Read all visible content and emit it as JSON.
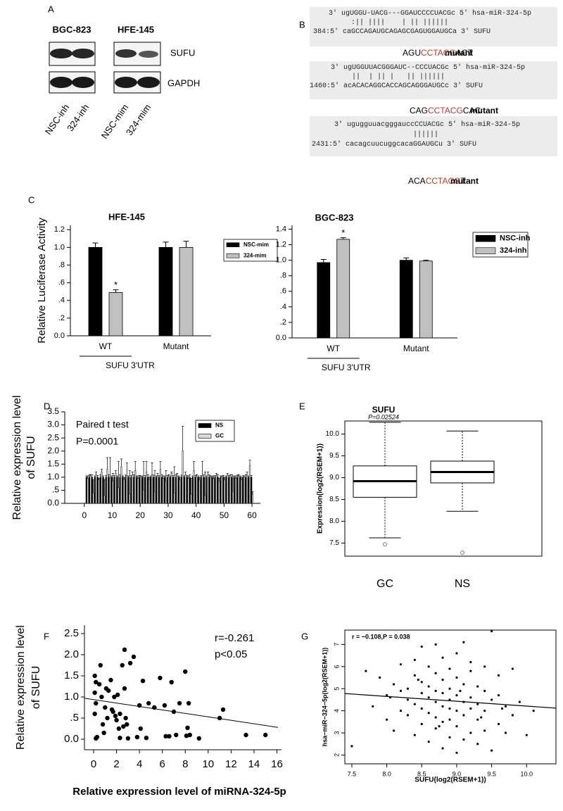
{
  "panel_labels": [
    "A",
    "B",
    "C",
    "D",
    "E",
    "F",
    "G"
  ],
  "blot": {
    "cell_lines": [
      "BGC-823",
      "HFE-145"
    ],
    "proteins": [
      "SUFU",
      "GAPDH"
    ],
    "lanes": [
      "NSC-inh",
      "324-inh",
      "NSC-mim",
      "324-mim"
    ]
  },
  "alignments": [
    {
      "mirna": "3' ugUGGU-UACG---GGAUCCCCUACGc 5' hsa-miR-324-5p",
      "pairing": ":|| ||||    | || ||||||",
      "target": "384:5' caGCCAGAUGCAGAGCGAGUGGAUGCa 3' SUFU",
      "mutant": [
        "AGU",
        "CCTACG",
        "ACT"
      ],
      "mutant_label": "mutant"
    },
    {
      "mirna": "3' ugUGGUUACGGGAUC--CCCUACGc 5' hsa-miR-324-5p",
      "pairing": "||  | || |   || ||||||",
      "target": "1460:5' acACACAGGCACCAGCAGGGAUGCc 3' SUFU",
      "mutant": [
        "CAG",
        "CCTACG",
        "CAC"
      ],
      "mutant_label": "mutant"
    },
    {
      "mirna": "3' ugugguuacgggauccCCUACGc 5' hsa-miR-324-5p",
      "pairing": "||||||",
      "target": "2431:5' cacagcuucuggcacaGGAUGCu 3' SUFU",
      "mutant": [
        "ACA",
        "CCTACG",
        "T"
      ],
      "mutant_label": "mutant"
    }
  ],
  "chart_data": [
    {
      "type": "bar",
      "title": "HFE-145",
      "ylabel": "Relative Luciferase Activity",
      "categories": [
        "WT",
        "Mutant"
      ],
      "group_label": "SUFU 3'UTR",
      "series": [
        {
          "name": "NSC-mim",
          "color": "#000000",
          "values": [
            1.0,
            1.0
          ],
          "errors": [
            0.05,
            0.06
          ]
        },
        {
          "name": "324-mim",
          "color": "#c0c0c0",
          "values": [
            0.49,
            1.0
          ],
          "errors": [
            0.03,
            0.07
          ],
          "significance": [
            "*",
            null
          ]
        }
      ],
      "ylim": [
        0,
        1.25
      ],
      "yticks": [
        {
          "value": 0,
          "label": "0.0"
        },
        {
          "value": 0.2,
          "label": ".2"
        },
        {
          "value": 0.4,
          "label": ".4"
        },
        {
          "value": 0.6,
          "label": ".6"
        },
        {
          "value": 0.8,
          "label": ".8"
        },
        {
          "value": 1,
          "label": "1.0"
        },
        1.2
      ],
      "legend": "right"
    },
    {
      "type": "bar",
      "title": "BGC-823",
      "categories": [
        "WT",
        "Mutant"
      ],
      "group_label": "SUFU 3'UTR",
      "series": [
        {
          "name": "NSC-inh",
          "color": "#000000",
          "values": [
            0.97,
            1.0
          ],
          "errors": [
            0.04,
            0.03
          ]
        },
        {
          "name": "324-inh",
          "color": "#c0c0c0",
          "values": [
            1.27,
            0.99
          ],
          "errors": [
            0.02,
            0.01
          ],
          "significance": [
            "*",
            null
          ]
        }
      ],
      "ylim": [
        0,
        1.45
      ],
      "yticks": [
        {
          "value": 0,
          "label": "0.0"
        },
        {
          "value": 0.2,
          "label": ".2"
        },
        {
          "value": 0.4,
          "label": ".4"
        },
        {
          "value": 0.6,
          "label": ".6"
        },
        {
          "value": 0.8,
          "label": ".8"
        },
        {
          "value": 1,
          "label": "1.0"
        },
        1.2,
        1.4
      ],
      "legend": "right"
    },
    {
      "type": "bar",
      "annotations": [
        "Paired t test",
        "P=0.0001"
      ],
      "ylabel": [
        "Relative expression level",
        "of SUFU"
      ],
      "x": [
        1,
        2,
        3,
        4,
        5,
        6,
        7,
        8,
        9,
        10,
        11,
        12,
        13,
        14,
        15,
        16,
        17,
        18,
        19,
        20,
        21,
        22,
        23,
        24,
        25,
        26,
        27,
        28,
        29,
        30,
        31,
        32,
        33,
        34,
        35,
        36,
        37,
        38,
        39,
        40,
        41,
        42,
        43,
        44,
        45,
        46,
        47,
        48,
        49,
        50,
        51,
        52,
        53,
        54,
        55,
        56,
        57,
        58,
        59,
        60
      ],
      "series": [
        {
          "name": "NS",
          "color": "#000000",
          "values": [
            1,
            1,
            1,
            1,
            1,
            1,
            1,
            1,
            1,
            1,
            1,
            1,
            1,
            1,
            1,
            1,
            1,
            1,
            1,
            1,
            1,
            1,
            1,
            1,
            1,
            1,
            1,
            1,
            1,
            1,
            1,
            1,
            1,
            1,
            1,
            1,
            1,
            1,
            1,
            1,
            1,
            1,
            1,
            1,
            1,
            1,
            1,
            1,
            1,
            1,
            1,
            1,
            1,
            1,
            1,
            1,
            1,
            1,
            1,
            1
          ],
          "errors": [
            0.05,
            0.08,
            0.1,
            0.05,
            0.06,
            0.1,
            0.05,
            0.07,
            0.1,
            0.05,
            0.06,
            0.05,
            0.1,
            0.05,
            0.08,
            0.05,
            0.06,
            0.1,
            0.05,
            0.07,
            0.05,
            0.06,
            0.1,
            0.05,
            0.08,
            0.05,
            0.06,
            0.1,
            0.05,
            0.07,
            0.05,
            0.06,
            0.1,
            0.05,
            0.08,
            0.05,
            0.06,
            0.1,
            0.05,
            0.07,
            0.05,
            0.06,
            0.1,
            0.05,
            0.08,
            0.05,
            0.06,
            0.1,
            0.05,
            0.07,
            0.05,
            0.06,
            0.1,
            0.05,
            0.08,
            0.05,
            0.06,
            0.1,
            0.05,
            0.07
          ]
        },
        {
          "name": "GC",
          "color": "#d9d9d9",
          "values": [
            0.95,
            1.05,
            0.4,
            1.1,
            0.9,
            1.2,
            0.3,
            1.3,
            1.0,
            0.85,
            1.15,
            0.6,
            1.4,
            0.9,
            1.05,
            0.35,
            1.1,
            1.25,
            0.95,
            1.0,
            0.5,
            1.2,
            0.9,
            1.1,
            0.45,
            1.05,
            1.3,
            0.95,
            0.85,
            1.0,
            1.15,
            0.4,
            1.05,
            0.9,
            2.0,
            1.1,
            0.95,
            0.35,
            1.25,
            1.0,
            0.9,
            1.05,
            0.3,
            1.1,
            1.0,
            0.95,
            1.05,
            0.85,
            1.0,
            0.9,
            1.1,
            1.0,
            0.45,
            0.95,
            1.05,
            0.9,
            1.0,
            1.1,
            1.45,
            0.35
          ],
          "errors": [
            0.1,
            0.05,
            0.5,
            0.1,
            0.05,
            0.1,
            0.6,
            0.45,
            0.75,
            0.3,
            0.1,
            1.0,
            0.3,
            0.1,
            0.5,
            0.9,
            0.1,
            0.35,
            0.1,
            0.05,
            1.1,
            0.4,
            0.1,
            0.45,
            0.8,
            0.1,
            0.3,
            0.1,
            0.4,
            0.1,
            0.05,
            1.0,
            0.1,
            0.1,
            0.95,
            0.1,
            0.1,
            0.6,
            0.35,
            0.1,
            0.1,
            0.55,
            0.9,
            0.1,
            0.05,
            0.1,
            0.1,
            0.1,
            0.05,
            0.1,
            0.05,
            0.1,
            0.6,
            0.1,
            0.05,
            0.1,
            0.05,
            0.1,
            0.2,
            0.1
          ]
        }
      ],
      "xlim": [
        -7,
        63
      ],
      "xticks": [
        0,
        10,
        20,
        30,
        40,
        50,
        60
      ],
      "ylim": [
        0,
        3.5
      ],
      "yticks": [
        {
          "value": 0,
          "label": "0.0"
        },
        {
          "value": 0.5,
          "label": ".5"
        },
        {
          "value": 1,
          "label": "1.0"
        },
        1.5,
        {
          "value": 2,
          "label": "2.0"
        },
        2.5,
        {
          "value": 3,
          "label": "3.0"
        },
        3.5
      ],
      "legend": "upper right"
    },
    {
      "type": "box",
      "title": "SUFU",
      "subtitle": "P=0.02524",
      "ylabel": "Expression(log2(RSEM+1))",
      "categories": [
        "GC",
        "NS"
      ],
      "frame": true,
      "boxes": [
        {
          "min": 7.62,
          "q1": 8.55,
          "median": 8.92,
          "q3": 9.27,
          "max": 10.27,
          "outliers": [
            7.47
          ]
        },
        {
          "min": 8.23,
          "q1": 8.88,
          "median": 9.13,
          "q3": 9.38,
          "max": 10.07,
          "outliers": [
            7.28
          ]
        }
      ],
      "ylim": [
        7.2,
        10.3
      ],
      "yticks": [
        7.5,
        {
          "value": 8,
          "label": "8.0"
        },
        8.5,
        {
          "value": 9,
          "label": "9.0"
        },
        9.5,
        {
          "value": 10,
          "label": "10.0"
        }
      ]
    },
    {
      "type": "scatter",
      "color": "#000000",
      "annotations": [
        "r=-0.261",
        "p<0.05"
      ],
      "xlabel": "Relative expression level of miRNA-324-5p",
      "ylabel": [
        "Relative expression level",
        "of SUFU"
      ],
      "x": [
        0.1,
        0.2,
        0.1,
        0.2,
        0.1,
        0.2,
        0.3,
        0.5,
        0.6,
        0.7,
        0.8,
        0.9,
        1.0,
        1.1,
        1.2,
        1.3,
        1.5,
        1.6,
        1.7,
        1.8,
        1.9,
        2.0,
        2.1,
        2.2,
        2.3,
        2.3,
        2.5,
        2.6,
        2.7,
        2.7,
        2.8,
        2.9,
        3.0,
        3.2,
        3.5,
        3.8,
        4.0,
        4.1,
        4.3,
        4.6,
        4.8,
        5.3,
        5.8,
        6.2,
        6.3,
        6.6,
        6.8,
        7.0,
        7.2,
        7.5,
        8.0,
        8.1,
        8.2,
        8.3,
        8.4,
        9.2,
        11.0,
        11.3,
        13.3,
        15.0
      ],
      "y": [
        1.5,
        1.35,
        1.1,
        0.85,
        0.6,
        0.02,
        0.05,
        1.3,
        1.75,
        1.0,
        0.35,
        0.15,
        0.75,
        1.2,
        0.5,
        1.15,
        1.4,
        0.7,
        0.65,
        1.0,
        0.55,
        0.45,
        1.05,
        0.25,
        0.03,
        0.6,
        1.75,
        0.3,
        2.12,
        1.2,
        0.5,
        0.35,
        0.02,
        1.8,
        1.95,
        0.05,
        0.8,
        0.25,
        1.38,
        0.03,
        0.85,
        0.75,
        1.45,
        0.8,
        0.07,
        0.07,
        1.35,
        0.65,
        0.1,
        0.85,
        1.6,
        0.08,
        0.27,
        0.85,
        0.1,
        0.02,
        0.5,
        0.7,
        0.1,
        0.1
      ],
      "fit": {
        "x": [
          -0.8,
          16.1
        ],
        "y": [
          0.97,
          0.28
        ]
      },
      "xlim": [
        -0.8,
        16.4
      ],
      "xticks": [
        0,
        2,
        4,
        6,
        8,
        10,
        12,
        14,
        16
      ],
      "ylim": [
        -0.25,
        2.7
      ],
      "yticks": [
        {
          "value": 0,
          "label": "0.0"
        },
        {
          "value": 0.5,
          "label": ".5"
        },
        {
          "value": 1,
          "label": "1.0"
        },
        1.5,
        {
          "value": 2,
          "label": "2.0"
        },
        2.5
      ]
    },
    {
      "type": "scatter",
      "color": "#000000",
      "frame": true,
      "annotations": [
        "r = −0.108,P = 0.038"
      ],
      "xlabel": "SUFU(log2(RSEM+1))",
      "ylabel": "hsa−miR−324−5p(log2(RSEM+1))",
      "x": [
        7.5,
        7.7,
        7.8,
        7.9,
        8.0,
        8.0,
        8.1,
        8.1,
        8.2,
        8.2,
        8.2,
        8.3,
        8.3,
        8.3,
        8.4,
        8.4,
        8.4,
        8.4,
        8.5,
        8.5,
        8.5,
        8.5,
        8.5,
        8.6,
        8.6,
        8.6,
        8.6,
        8.6,
        8.7,
        8.7,
        8.7,
        8.7,
        8.7,
        8.7,
        8.8,
        8.8,
        8.8,
        8.8,
        8.8,
        8.8,
        8.9,
        8.9,
        8.9,
        8.9,
        8.9,
        8.9,
        9.0,
        9.0,
        9.0,
        9.0,
        9.0,
        9.0,
        9.1,
        9.1,
        9.1,
        9.1,
        9.1,
        9.2,
        9.2,
        9.2,
        9.2,
        9.2,
        9.3,
        9.3,
        9.3,
        9.3,
        9.4,
        9.4,
        9.4,
        9.4,
        9.5,
        9.5,
        9.5,
        9.6,
        9.6,
        9.6,
        9.7,
        9.7,
        9.8,
        9.8,
        9.9,
        10.0,
        10.1,
        8.05,
        8.45,
        8.75,
        9.05,
        9.35,
        9.65
      ],
      "y": [
        2.4,
        5.8,
        4.2,
        5.5,
        3.6,
        4.7,
        5.2,
        3.1,
        4.9,
        4.0,
        6.1,
        3.8,
        5.0,
        4.5,
        2.9,
        4.3,
        5.6,
        6.3,
        3.4,
        4.8,
        5.3,
        6.9,
        4.1,
        2.6,
        3.9,
        4.6,
        5.1,
        6.0,
        3.2,
        4.4,
        4.9,
        5.7,
        3.7,
        7.0,
        2.3,
        3.5,
        4.2,
        4.8,
        5.4,
        6.4,
        2.8,
        3.6,
        4.5,
        5.0,
        5.9,
        4.1,
        2.1,
        3.3,
        4.0,
        4.7,
        5.5,
        6.6,
        2.7,
        3.8,
        4.4,
        5.2,
        7.1,
        3.0,
        4.1,
        4.6,
        5.8,
        6.2,
        2.5,
        3.6,
        4.3,
        5.1,
        3.1,
        4.0,
        4.9,
        6.0,
        2.2,
        4.5,
        7.6,
        3.4,
        4.7,
        5.6,
        3.0,
        4.2,
        3.8,
        5.9,
        4.4,
        2.9,
        4.0,
        4.6,
        5.4,
        3.3,
        4.9,
        3.7,
        4.1
      ],
      "fit": {
        "x": [
          7.4,
          10.42
        ],
        "y": [
          4.78,
          4.12
        ]
      },
      "xlim": [
        7.4,
        10.42
      ],
      "xticks": [
        7.5,
        {
          "value": 8,
          "label": "8.0"
        },
        8.5,
        {
          "value": 9,
          "label": "9.0"
        },
        9.5,
        {
          "value": 10,
          "label": "10.0"
        }
      ],
      "ylim": [
        1.6,
        7.65
      ],
      "yticks": [
        2,
        3,
        4,
        5,
        6,
        7
      ]
    }
  ]
}
